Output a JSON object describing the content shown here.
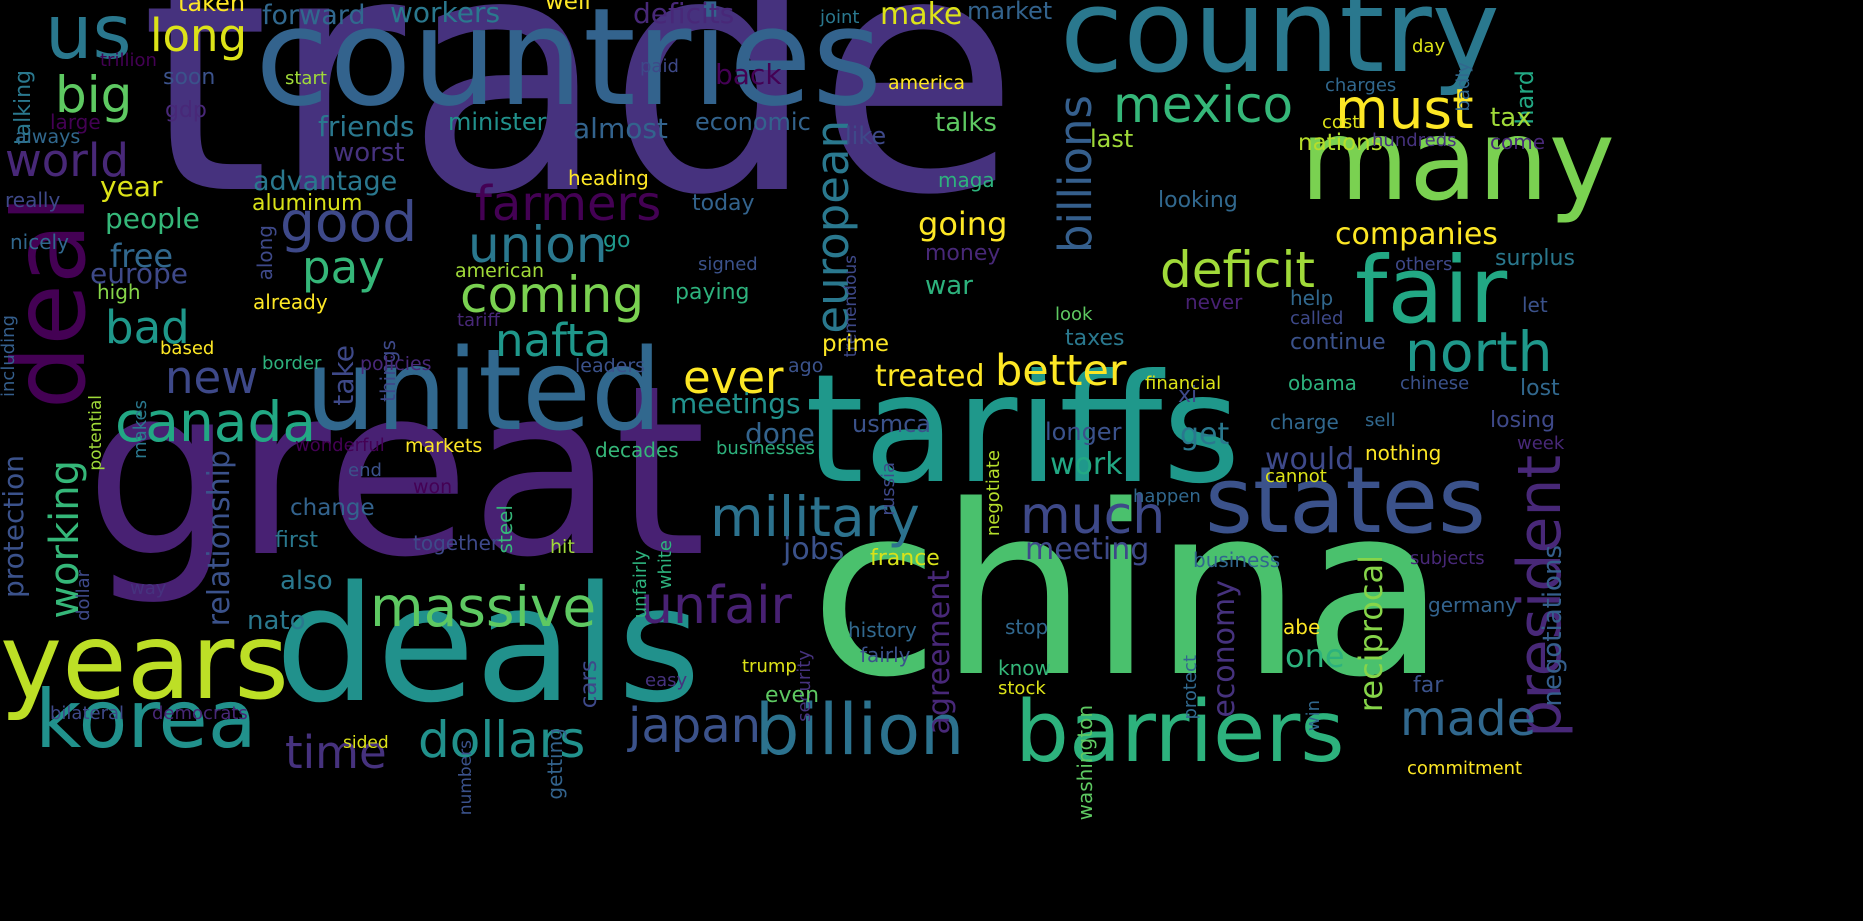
{
  "words": [
    {
      "text": "trade",
      "color": "#46327e"
    },
    {
      "text": "china",
      "color": "#4ac16d"
    },
    {
      "text": "great",
      "color": "#482173"
    },
    {
      "text": "countries",
      "color": "#33638d"
    },
    {
      "text": "country",
      "color": "#2a788e"
    },
    {
      "text": "tariffs",
      "color": "#1f988b"
    },
    {
      "text": "deals",
      "color": "#21918c"
    },
    {
      "text": "united",
      "color": "#31688e"
    },
    {
      "text": "many",
      "color": "#7ad151"
    },
    {
      "text": "barriers",
      "color": "#2db27d"
    },
    {
      "text": "years",
      "color": "#bddf26"
    },
    {
      "text": "states",
      "color": "#3b528b"
    },
    {
      "text": "fair",
      "color": "#22a884"
    },
    {
      "text": "deal",
      "color": "#440154"
    },
    {
      "text": "billion",
      "color": "#2c728e"
    },
    {
      "text": "korea",
      "color": "#21918c"
    },
    {
      "text": "massive",
      "color": "#5ec962"
    },
    {
      "text": "military",
      "color": "#2c728e"
    },
    {
      "text": "us",
      "color": "#2a788e"
    },
    {
      "text": "mexico",
      "color": "#35b779"
    },
    {
      "text": "must",
      "color": "#fde725"
    },
    {
      "text": "deficit",
      "color": "#a0da39"
    },
    {
      "text": "north",
      "color": "#1f988b"
    },
    {
      "text": "president",
      "color": "#482878"
    },
    {
      "text": "good",
      "color": "#3e4989"
    },
    {
      "text": "canada",
      "color": "#22a884"
    },
    {
      "text": "dollars",
      "color": "#21918c"
    },
    {
      "text": "japan",
      "color": "#3b528b"
    },
    {
      "text": "much",
      "color": "#3e4989"
    },
    {
      "text": "made",
      "color": "#31688e"
    },
    {
      "text": "better",
      "color": "#fde725"
    },
    {
      "text": "coming",
      "color": "#7ad151"
    },
    {
      "text": "unfair",
      "color": "#482173"
    },
    {
      "text": "european",
      "color": "#2a788e"
    },
    {
      "text": "billions",
      "color": "#355f8d"
    },
    {
      "text": "union",
      "color": "#2a788e"
    },
    {
      "text": "farmers",
      "color": "#440154"
    },
    {
      "text": "pay",
      "color": "#35b779"
    },
    {
      "text": "big",
      "color": "#5ec962"
    },
    {
      "text": "world",
      "color": "#482878"
    },
    {
      "text": "new",
      "color": "#3e4989"
    },
    {
      "text": "bad",
      "color": "#1f988b"
    },
    {
      "text": "nafta",
      "color": "#1f988b"
    },
    {
      "text": "ever",
      "color": "#fde725"
    },
    {
      "text": "long",
      "color": "#dde318"
    },
    {
      "text": "time",
      "color": "#46327e"
    },
    {
      "text": "working",
      "color": "#35b779"
    },
    {
      "text": "relationship",
      "color": "#3b528b"
    },
    {
      "text": "companies",
      "color": "#fde725"
    },
    {
      "text": "going",
      "color": "#fde725"
    },
    {
      "text": "treated",
      "color": "#fde725"
    },
    {
      "text": "meeting",
      "color": "#3e4989"
    },
    {
      "text": "one",
      "color": "#2db27d"
    },
    {
      "text": "reciprocal",
      "color": "#86d549"
    },
    {
      "text": "agreement",
      "color": "#482878"
    },
    {
      "text": "economy",
      "color": "#46327e"
    },
    {
      "text": "negotiations",
      "color": "#355f8d"
    },
    {
      "text": "protection",
      "color": "#3b528b"
    },
    {
      "text": "jobs",
      "color": "#3b528b"
    },
    {
      "text": "meetings",
      "color": "#21918c"
    },
    {
      "text": "get",
      "color": "#2a788e"
    },
    {
      "text": "work",
      "color": "#22a884"
    },
    {
      "text": "would",
      "color": "#3e4989"
    },
    {
      "text": "done",
      "color": "#33638d"
    },
    {
      "text": "talks",
      "color": "#5ec962"
    },
    {
      "text": "advantage",
      "color": "#2a788e"
    },
    {
      "text": "free",
      "color": "#31688e"
    },
    {
      "text": "people",
      "color": "#35b779"
    },
    {
      "text": "year",
      "color": "#dde318"
    },
    {
      "text": "europe",
      "color": "#3e4989"
    },
    {
      "text": "almost",
      "color": "#33638d"
    },
    {
      "text": "friends",
      "color": "#2a788e"
    },
    {
      "text": "worst",
      "color": "#46327e"
    },
    {
      "text": "back",
      "color": "#440154"
    },
    {
      "text": "deficits",
      "color": "#482878"
    },
    {
      "text": "workers",
      "color": "#2a788e"
    },
    {
      "text": "make",
      "color": "#dde318"
    },
    {
      "text": "forward",
      "color": "#31688e"
    },
    {
      "text": "taken",
      "color": "#fde725"
    },
    {
      "text": "well",
      "color": "#fde725"
    },
    {
      "text": "market",
      "color": "#33638d"
    },
    {
      "text": "joint",
      "color": "#2a788e"
    },
    {
      "text": "trillion",
      "color": "#440154"
    },
    {
      "text": "soon",
      "color": "#3b528b"
    },
    {
      "text": "start",
      "color": "#a0da39"
    },
    {
      "text": "paid",
      "color": "#3e4989"
    },
    {
      "text": "america",
      "color": "#fde725"
    },
    {
      "text": "day",
      "color": "#dde318"
    },
    {
      "text": "charges",
      "color": "#31688e"
    },
    {
      "text": "badly",
      "color": "#31688e"
    },
    {
      "text": "hard",
      "color": "#22a884"
    },
    {
      "text": "talking",
      "color": "#2a788e"
    },
    {
      "text": "gdp",
      "color": "#482878"
    },
    {
      "text": "large",
      "color": "#440154"
    },
    {
      "text": "always",
      "color": "#31688e"
    },
    {
      "text": "minister",
      "color": "#21918c"
    },
    {
      "text": "economic",
      "color": "#33638d"
    },
    {
      "text": "like",
      "color": "#3e4989"
    },
    {
      "text": "last",
      "color": "#a0da39"
    },
    {
      "text": "cost",
      "color": "#dde318"
    },
    {
      "text": "tax",
      "color": "#a0da39"
    },
    {
      "text": "nations",
      "color": "#b5de2b"
    },
    {
      "text": "hundreds",
      "color": "#46327e"
    },
    {
      "text": "come",
      "color": "#482878"
    },
    {
      "text": "really",
      "color": "#3e4989"
    },
    {
      "text": "heading",
      "color": "#fde725"
    },
    {
      "text": "aluminum",
      "color": "#d8e219"
    },
    {
      "text": "today",
      "color": "#33638d"
    },
    {
      "text": "maga",
      "color": "#2db27d"
    },
    {
      "text": "looking",
      "color": "#31688e"
    },
    {
      "text": "nicely",
      "color": "#31688e"
    },
    {
      "text": "along",
      "color": "#3e4989"
    },
    {
      "text": "go",
      "color": "#1f988b"
    },
    {
      "text": "money",
      "color": "#482878"
    },
    {
      "text": "signed",
      "color": "#3b528b"
    },
    {
      "text": "tremendous",
      "color": "#3e4989"
    },
    {
      "text": "others",
      "color": "#3e4989"
    },
    {
      "text": "surplus",
      "color": "#2a788e"
    },
    {
      "text": "including",
      "color": "#355f8d"
    },
    {
      "text": "high",
      "color": "#86d549"
    },
    {
      "text": "american",
      "color": "#a0da39"
    },
    {
      "text": "war",
      "color": "#2db27d"
    },
    {
      "text": "paying",
      "color": "#2db27d"
    },
    {
      "text": "help",
      "color": "#31688e"
    },
    {
      "text": "let",
      "color": "#3b528b"
    },
    {
      "text": "already",
      "color": "#fde725"
    },
    {
      "text": "things",
      "color": "#3e4989"
    },
    {
      "text": "tariff",
      "color": "#482878"
    },
    {
      "text": "never",
      "color": "#482173"
    },
    {
      "text": "look",
      "color": "#5ec962"
    },
    {
      "text": "called",
      "color": "#3e4989"
    },
    {
      "text": "based",
      "color": "#fde725"
    },
    {
      "text": "take",
      "color": "#3e4989"
    },
    {
      "text": "makes",
      "color": "#2a788e"
    },
    {
      "text": "policies",
      "color": "#482878"
    },
    {
      "text": "leaders",
      "color": "#3b528b"
    },
    {
      "text": "prime",
      "color": "#fde725"
    },
    {
      "text": "taxes",
      "color": "#2a788e"
    },
    {
      "text": "continue",
      "color": "#3b528b"
    },
    {
      "text": "border",
      "color": "#2db27d"
    },
    {
      "text": "ago",
      "color": "#3b528b"
    },
    {
      "text": "financial",
      "color": "#dde318"
    },
    {
      "text": "obama",
      "color": "#2db27d"
    },
    {
      "text": "chinese",
      "color": "#3b528b"
    },
    {
      "text": "lost",
      "color": "#31688e"
    },
    {
      "text": "potential",
      "color": "#a0da39"
    },
    {
      "text": "xi",
      "color": "#3e4989"
    },
    {
      "text": "usmca",
      "color": "#3b528b"
    },
    {
      "text": "longer",
      "color": "#3b528b"
    },
    {
      "text": "charge",
      "color": "#31688e"
    },
    {
      "text": "sell",
      "color": "#31688e"
    },
    {
      "text": "losing",
      "color": "#3e4989"
    },
    {
      "text": "week",
      "color": "#482878"
    },
    {
      "text": "wonderful",
      "color": "#440154"
    },
    {
      "text": "markets",
      "color": "#fde725"
    },
    {
      "text": "decades",
      "color": "#35b779"
    },
    {
      "text": "businesses",
      "color": "#2db27d"
    },
    {
      "text": "russia",
      "color": "#3e4989"
    },
    {
      "text": "negotiate",
      "color": "#b5de2b"
    },
    {
      "text": "nothing",
      "color": "#fde725"
    },
    {
      "text": "cannot",
      "color": "#dde318"
    },
    {
      "text": "end",
      "color": "#3b528b"
    },
    {
      "text": "won",
      "color": "#440154"
    },
    {
      "text": "change",
      "color": "#33638d"
    },
    {
      "text": "steel",
      "color": "#35b779"
    },
    {
      "text": "happen",
      "color": "#31688e"
    },
    {
      "text": "dollar",
      "color": "#3e4989"
    },
    {
      "text": "first",
      "color": "#2a788e"
    },
    {
      "text": "together",
      "color": "#3e4989"
    },
    {
      "text": "unfairly",
      "color": "#2db27d"
    },
    {
      "text": "white",
      "color": "#2db27d"
    },
    {
      "text": "hit",
      "color": "#a0da39"
    },
    {
      "text": "france",
      "color": "#d8e219"
    },
    {
      "text": "business",
      "color": "#31688e"
    },
    {
      "text": "subjects",
      "color": "#482878"
    },
    {
      "text": "also",
      "color": "#2a788e"
    },
    {
      "text": "way",
      "color": "#46327e"
    },
    {
      "text": "nato",
      "color": "#2a788e"
    },
    {
      "text": "security",
      "color": "#46327e"
    },
    {
      "text": "germany",
      "color": "#33638d"
    },
    {
      "text": "history",
      "color": "#31688e"
    },
    {
      "text": "stop",
      "color": "#31688e"
    },
    {
      "text": "protect",
      "color": "#31688e"
    },
    {
      "text": "abe",
      "color": "#fde725"
    },
    {
      "text": "cars",
      "color": "#3e4989"
    },
    {
      "text": "fairly",
      "color": "#3b528b"
    },
    {
      "text": "trump",
      "color": "#dde318"
    },
    {
      "text": "know",
      "color": "#35b779"
    },
    {
      "text": "washington",
      "color": "#5ec962"
    },
    {
      "text": "easy",
      "color": "#46327e"
    },
    {
      "text": "stock",
      "color": "#dde318"
    },
    {
      "text": "win",
      "color": "#31688e"
    },
    {
      "text": "even",
      "color": "#5ec962"
    },
    {
      "text": "getting",
      "color": "#33638d"
    },
    {
      "text": "numbers",
      "color": "#3b528b"
    },
    {
      "text": "far",
      "color": "#3b528b"
    },
    {
      "text": "bilateral",
      "color": "#3e4989"
    },
    {
      "text": "democrats",
      "color": "#482878"
    },
    {
      "text": "sided",
      "color": "#dde318"
    },
    {
      "text": "commitment",
      "color": "#fde725"
    }
  ]
}
